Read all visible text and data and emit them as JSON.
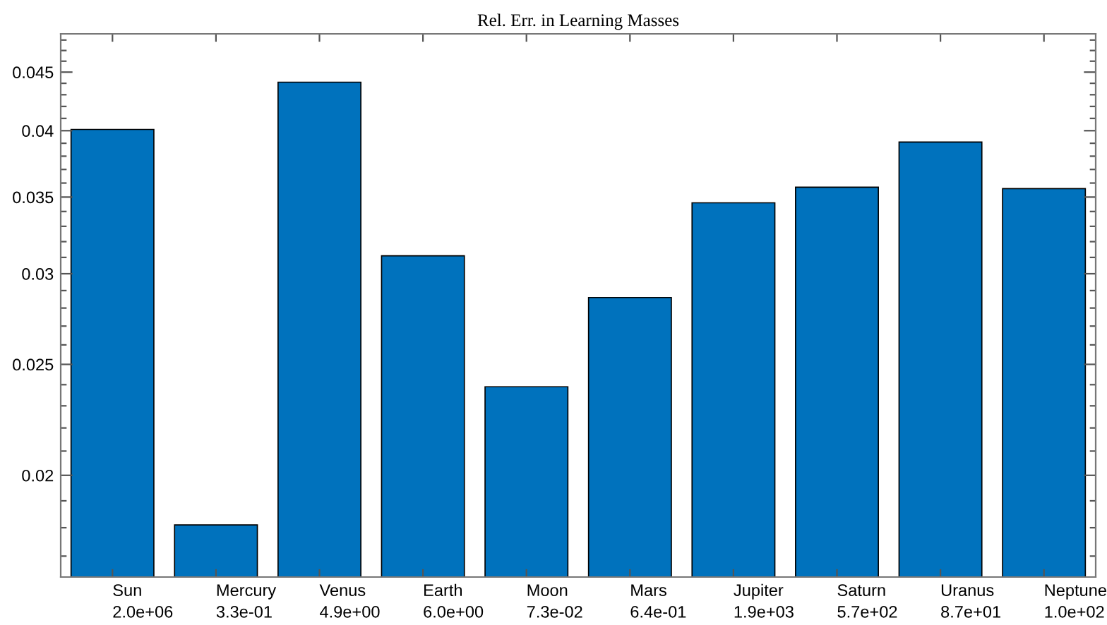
{
  "chart_data": {
    "type": "bar",
    "title": "Rel. Err. in Learning Masses",
    "categories": [
      "Sun\n2.0e+06",
      "Mercury\n3.3e-01",
      "Venus\n4.9e+00",
      "Earth\n6.0e+00",
      "Moon\n7.3e-02",
      "Mars\n6.4e-01",
      "Jupiter\n1.9e+03",
      "Saturn\n5.7e+02",
      "Uranus\n8.7e+01",
      "Neptune\n1.0e+02"
    ],
    "values": [
      0.0401,
      0.0181,
      0.0441,
      0.0311,
      0.0239,
      0.0286,
      0.0346,
      0.0357,
      0.0391,
      0.0356
    ],
    "color": "#0072bd",
    "log": "y",
    "ylim": [
      0.0163,
      0.0486
    ],
    "yticks": [
      {
        "value": 0.017,
        "label": null
      },
      {
        "value": 0.018,
        "label": null
      },
      {
        "value": 0.019,
        "label": null
      },
      0.02,
      {
        "value": 0.021,
        "label": null
      },
      {
        "value": 0.022,
        "label": null
      },
      {
        "value": 0.023,
        "label": null
      },
      {
        "value": 0.024,
        "label": null
      },
      0.025,
      {
        "value": 0.026,
        "label": null
      },
      {
        "value": 0.027,
        "label": null
      },
      {
        "value": 0.028,
        "label": null
      },
      {
        "value": 0.029,
        "label": null
      },
      0.03,
      {
        "value": 0.031,
        "label": null
      },
      {
        "value": 0.032,
        "label": null
      },
      {
        "value": 0.033,
        "label": null
      },
      {
        "value": 0.034,
        "label": null
      },
      0.035,
      {
        "value": 0.036,
        "label": null
      },
      {
        "value": 0.037,
        "label": null
      },
      {
        "value": 0.038,
        "label": null
      },
      {
        "value": 0.039,
        "label": null
      },
      0.04,
      {
        "value": 0.041,
        "label": null
      },
      {
        "value": 0.042,
        "label": null
      },
      {
        "value": 0.043,
        "label": null
      },
      {
        "value": 0.044,
        "label": null
      },
      0.045,
      {
        "value": 0.046,
        "label": null
      },
      {
        "value": 0.047,
        "label": null
      },
      {
        "value": 0.048,
        "label": null
      }
    ],
    "grid": false
  }
}
